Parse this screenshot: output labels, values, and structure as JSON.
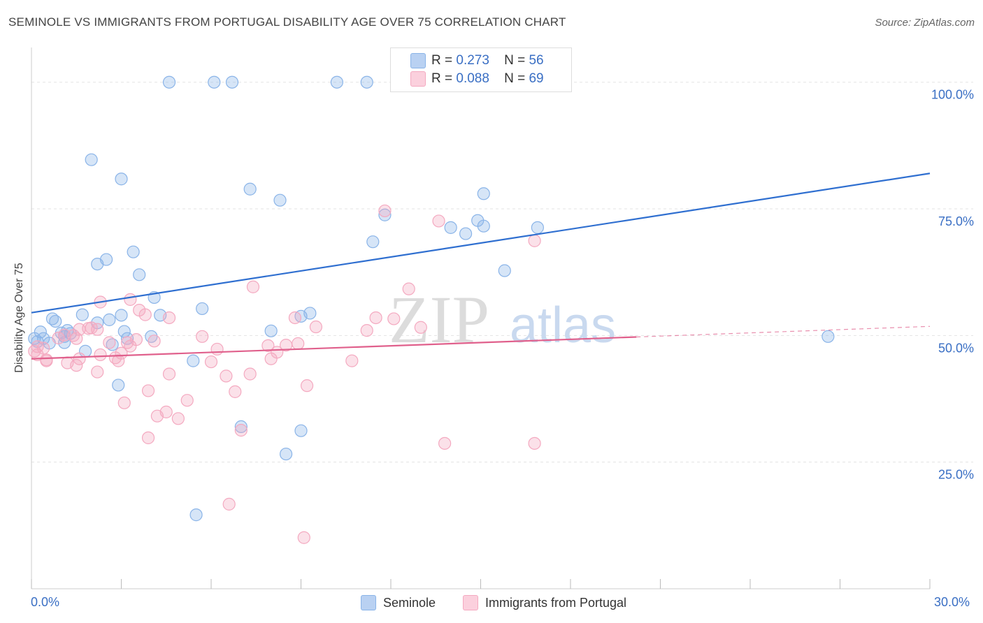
{
  "title": "SEMINOLE VS IMMIGRANTS FROM PORTUGAL DISABILITY AGE OVER 75 CORRELATION CHART",
  "source": "Source: ZipAtlas.com",
  "watermark": {
    "zip": "ZIP",
    "atlas": "atlas"
  },
  "legend": {
    "r_label": "R =",
    "n_label": "N =",
    "rows": [
      {
        "r": "0.273",
        "n": "56"
      },
      {
        "r": "0.088",
        "n": "69"
      }
    ]
  },
  "chart_data": {
    "type": "scatter",
    "ylabel": "Disability Age Over 75",
    "xlim": [
      0,
      30
    ],
    "ylim": [
      0,
      100
    ],
    "x_tick_labels": [
      "0.0%",
      "30.0%"
    ],
    "y_ticks": [
      {
        "value": 100,
        "label": "100.0%"
      },
      {
        "value": 75,
        "label": "75.0%"
      },
      {
        "value": 50,
        "label": "50.0%"
      },
      {
        "value": 25,
        "label": "25.0%"
      }
    ],
    "grid": true,
    "legend_position": "top-center",
    "series": [
      {
        "name": "Seminole",
        "color": "#8ab4e8",
        "line_color": "#2f6fd0",
        "trend": {
          "x0": 0,
          "y0": 54.5,
          "x1": 30,
          "y1": 82.0,
          "dashed_from": null
        },
        "points": [
          [
            4.6,
            100
          ],
          [
            6.1,
            100
          ],
          [
            6.7,
            100
          ],
          [
            10.2,
            100
          ],
          [
            11.2,
            100
          ],
          [
            2.0,
            84.7
          ],
          [
            3.0,
            80.9
          ],
          [
            7.3,
            78.9
          ],
          [
            8.3,
            76.7
          ],
          [
            15.1,
            78.0
          ],
          [
            11.8,
            73.8
          ],
          [
            14.0,
            71.3
          ],
          [
            14.5,
            70.1
          ],
          [
            14.9,
            72.7
          ],
          [
            15.1,
            71.6
          ],
          [
            16.9,
            71.3
          ],
          [
            11.4,
            68.5
          ],
          [
            3.4,
            66.5
          ],
          [
            2.5,
            65.0
          ],
          [
            2.2,
            64.1
          ],
          [
            15.8,
            62.8
          ],
          [
            3.6,
            62.0
          ],
          [
            4.1,
            57.5
          ],
          [
            5.7,
            55.3
          ],
          [
            9.0,
            53.8
          ],
          [
            9.3,
            54.4
          ],
          [
            4.3,
            54.0
          ],
          [
            1.7,
            54.1
          ],
          [
            0.7,
            53.3
          ],
          [
            0.8,
            52.8
          ],
          [
            2.2,
            52.5
          ],
          [
            2.6,
            53.1
          ],
          [
            3.0,
            54.0
          ],
          [
            1.2,
            51.0
          ],
          [
            0.3,
            50.7
          ],
          [
            1.0,
            50.5
          ],
          [
            1.3,
            50.4
          ],
          [
            1.1,
            49.8
          ],
          [
            3.1,
            50.8
          ],
          [
            4.0,
            49.8
          ],
          [
            3.2,
            49.4
          ],
          [
            0.1,
            49.4
          ],
          [
            0.4,
            49.4
          ],
          [
            0.2,
            48.8
          ],
          [
            0.6,
            48.5
          ],
          [
            1.1,
            48.6
          ],
          [
            2.7,
            48.2
          ],
          [
            8.0,
            50.9
          ],
          [
            1.8,
            46.9
          ],
          [
            5.4,
            45.0
          ],
          [
            2.9,
            40.2
          ],
          [
            7.0,
            32.0
          ],
          [
            9.0,
            31.2
          ],
          [
            8.5,
            26.6
          ],
          [
            5.5,
            14.6
          ],
          [
            26.6,
            49.8
          ]
        ]
      },
      {
        "name": "Immigrants from Portugal",
        "color": "#f4a9c0",
        "line_color": "#e0608c",
        "trend": {
          "x0": 0,
          "y0": 45.4,
          "x1": 30,
          "y1": 51.8,
          "dashed_from": 20.2
        },
        "points": [
          [
            11.8,
            74.6
          ],
          [
            13.6,
            72.6
          ],
          [
            16.8,
            68.7
          ],
          [
            7.4,
            59.6
          ],
          [
            12.6,
            59.2
          ],
          [
            2.3,
            56.6
          ],
          [
            3.3,
            57.1
          ],
          [
            3.6,
            55.0
          ],
          [
            4.6,
            53.5
          ],
          [
            8.8,
            53.5
          ],
          [
            11.5,
            53.5
          ],
          [
            12.1,
            53.3
          ],
          [
            9.5,
            51.7
          ],
          [
            13.0,
            51.6
          ],
          [
            11.2,
            51.0
          ],
          [
            3.8,
            54.1
          ],
          [
            2.0,
            51.5
          ],
          [
            2.2,
            51.2
          ],
          [
            1.6,
            51.2
          ],
          [
            1.9,
            51.4
          ],
          [
            1.1,
            50.1
          ],
          [
            0.9,
            49.5
          ],
          [
            1.4,
            50.0
          ],
          [
            1.5,
            49.4
          ],
          [
            2.6,
            48.6
          ],
          [
            3.2,
            48.6
          ],
          [
            3.5,
            49.2
          ],
          [
            4.1,
            48.9
          ],
          [
            5.7,
            49.8
          ],
          [
            7.9,
            48.0
          ],
          [
            8.5,
            48.1
          ],
          [
            8.9,
            48.4
          ],
          [
            3.3,
            47.9
          ],
          [
            6.2,
            47.3
          ],
          [
            8.2,
            46.7
          ],
          [
            2.3,
            46.2
          ],
          [
            3.0,
            46.5
          ],
          [
            0.2,
            47.8
          ],
          [
            0.4,
            47.5
          ],
          [
            0.1,
            46.9
          ],
          [
            0.2,
            46.2
          ],
          [
            0.5,
            45.0
          ],
          [
            1.6,
            45.4
          ],
          [
            2.8,
            45.6
          ],
          [
            8.0,
            45.4
          ],
          [
            2.9,
            45.0
          ],
          [
            0.5,
            45.2
          ],
          [
            6.0,
            44.8
          ],
          [
            10.7,
            45.0
          ],
          [
            1.2,
            44.6
          ],
          [
            1.5,
            44.1
          ],
          [
            2.2,
            42.8
          ],
          [
            4.6,
            42.4
          ],
          [
            6.5,
            42.0
          ],
          [
            7.3,
            42.4
          ],
          [
            9.2,
            40.1
          ],
          [
            3.9,
            39.1
          ],
          [
            6.8,
            38.9
          ],
          [
            5.2,
            37.2
          ],
          [
            3.1,
            36.7
          ],
          [
            4.5,
            34.9
          ],
          [
            4.2,
            34.1
          ],
          [
            4.9,
            33.6
          ],
          [
            7.0,
            31.3
          ],
          [
            3.9,
            29.8
          ],
          [
            13.8,
            28.7
          ],
          [
            16.8,
            28.7
          ],
          [
            6.6,
            16.7
          ],
          [
            9.1,
            10.1
          ]
        ]
      }
    ]
  }
}
